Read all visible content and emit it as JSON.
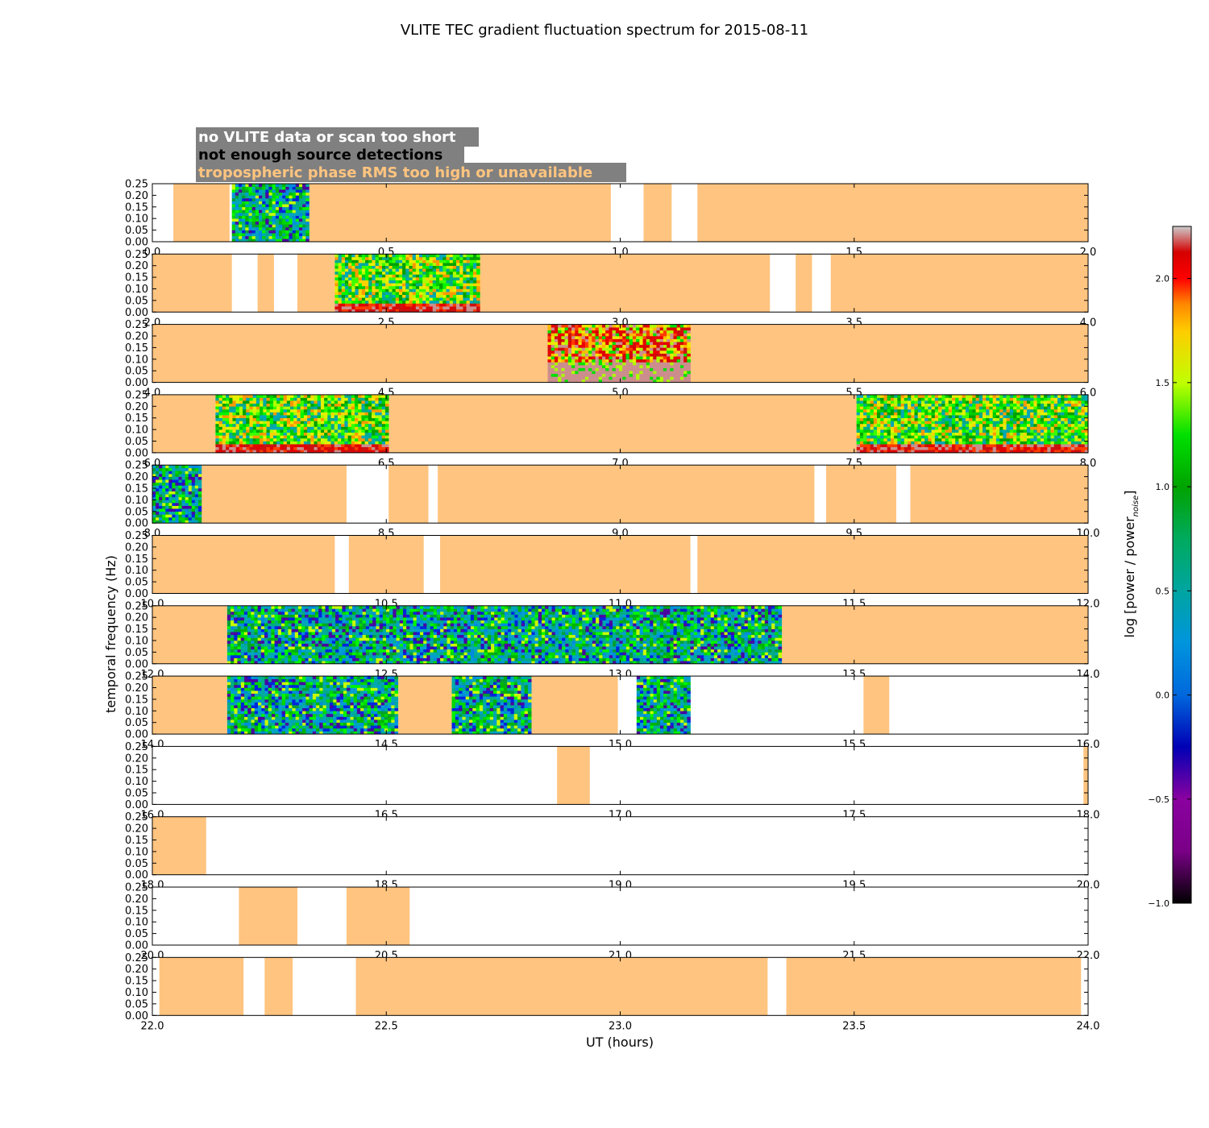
{
  "chart_data": {
    "type": "heatmap",
    "title": "VLITE TEC gradient fluctuation spectrum for 2015-08-11",
    "xlabel": "UT (hours)",
    "ylabel": "temporal frequency (Hz)",
    "colorbar_label": "log [power / power",
    "colorbar_label_sub": "noise",
    "colorbar_label_end": "]",
    "colorbar_range": [
      -1.0,
      2.25
    ],
    "colorbar_ticks": [
      "−1.0",
      "−0.5",
      "0.0",
      "0.5",
      "1.0",
      "1.5",
      "2.0"
    ],
    "colorbar_tick_values": [
      -1.0,
      -0.5,
      0.0,
      0.5,
      1.0,
      1.5,
      2.0
    ],
    "colormap": "nipy_spectral",
    "ylim": [
      0,
      0.25
    ],
    "y_ticks": [
      "0.00",
      "0.05",
      "0.10",
      "0.15",
      "0.20",
      "0.25"
    ],
    "legend": [
      {
        "label": "no VLITE data or scan too short",
        "text_color": "#ffffff",
        "box_color": "#808080"
      },
      {
        "label": "not enough source detections",
        "text_color": "#000000",
        "box_color": "#808080"
      },
      {
        "label": "tropospheric phase RMS too high or unavailable",
        "text_color": "#ffc47f",
        "box_color": "#808080"
      }
    ],
    "flag_colors": {
      "no_data": "#ffffff",
      "tropo": "#ffc47f"
    },
    "panels": [
      {
        "xlim": [
          0.0,
          2.0
        ],
        "x_ticks": [
          "0.0",
          "0.5",
          "1.0",
          "1.5",
          "2.0"
        ],
        "tropo": [
          [
            0.045,
            0.165
          ],
          [
            0.335,
            0.98
          ],
          [
            1.05,
            1.11
          ],
          [
            1.165,
            2.0
          ]
        ],
        "data": [
          {
            "range": [
              0.17,
              0.335
            ],
            "level": "low"
          }
        ]
      },
      {
        "xlim": [
          2.0,
          4.0
        ],
        "x_ticks": [
          "2.0",
          "2.5",
          "3.0",
          "3.5",
          "4.0"
        ],
        "tropo": [
          [
            2.0,
            2.17
          ],
          [
            2.225,
            2.26
          ],
          [
            2.31,
            2.39
          ],
          [
            2.7,
            3.32
          ],
          [
            3.375,
            3.41
          ],
          [
            3.45,
            4.0
          ]
        ],
        "data": [
          {
            "range": [
              2.39,
              2.7
            ],
            "level": "mid"
          }
        ]
      },
      {
        "xlim": [
          4.0,
          6.0
        ],
        "x_ticks": [
          "4.0",
          "4.5",
          "5.0",
          "5.5",
          "6.0"
        ],
        "tropo": [
          [
            4.0,
            4.845
          ],
          [
            5.15,
            6.0
          ]
        ],
        "data": [
          {
            "range": [
              4.845,
              5.15
            ],
            "level": "high"
          }
        ]
      },
      {
        "xlim": [
          6.0,
          8.0
        ],
        "x_ticks": [
          "6.0",
          "6.5",
          "7.0",
          "7.5",
          "8.0"
        ],
        "tropo": [
          [
            6.0,
            6.135
          ],
          [
            6.505,
            7.505
          ]
        ],
        "data": [
          {
            "range": [
              6.135,
              6.505
            ],
            "level": "mid"
          },
          {
            "range": [
              7.505,
              8.0
            ],
            "level": "mid"
          }
        ]
      },
      {
        "xlim": [
          8.0,
          10.0
        ],
        "x_ticks": [
          "8.0",
          "8.5",
          "9.0",
          "9.5",
          "10.0"
        ],
        "tropo": [
          [
            8.105,
            8.415
          ],
          [
            8.505,
            8.59
          ],
          [
            8.61,
            9.415
          ],
          [
            9.44,
            9.59
          ],
          [
            9.62,
            10.0
          ]
        ],
        "data": [
          {
            "range": [
              8.0,
              8.105
            ],
            "level": "low"
          }
        ]
      },
      {
        "xlim": [
          10.0,
          12.0
        ],
        "x_ticks": [
          "10.0",
          "10.5",
          "11.0",
          "11.5",
          "12.0"
        ],
        "tropo": [
          [
            10.0,
            10.39
          ],
          [
            10.42,
            10.58
          ],
          [
            10.615,
            11.15
          ],
          [
            11.165,
            12.0
          ]
        ],
        "data": []
      },
      {
        "xlim": [
          12.0,
          14.0
        ],
        "x_ticks": [
          "12.0",
          "12.5",
          "13.0",
          "13.5",
          "14.0"
        ],
        "tropo": [
          [
            12.0,
            12.16
          ],
          [
            13.345,
            14.0
          ]
        ],
        "data": [
          {
            "range": [
              12.16,
              13.345
            ],
            "level": "low"
          }
        ]
      },
      {
        "xlim": [
          14.0,
          16.0
        ],
        "x_ticks": [
          "14.0",
          "14.5",
          "15.0",
          "15.5",
          "16.0"
        ],
        "tropo": [
          [
            14.0,
            14.16
          ],
          [
            14.525,
            14.64
          ],
          [
            14.81,
            14.995
          ],
          [
            15.52,
            15.575
          ]
        ],
        "data": [
          {
            "range": [
              14.16,
              14.525
            ],
            "level": "low"
          },
          {
            "range": [
              14.64,
              14.81
            ],
            "level": "low"
          },
          {
            "range": [
              15.035,
              15.15
            ],
            "level": "low"
          }
        ]
      },
      {
        "xlim": [
          16.0,
          18.0
        ],
        "x_ticks": [
          "16.0",
          "16.5",
          "17.0",
          "17.5",
          "18.0"
        ],
        "tropo": [
          [
            16.865,
            16.935
          ],
          [
            17.99,
            18.0
          ]
        ],
        "data": []
      },
      {
        "xlim": [
          18.0,
          20.0
        ],
        "x_ticks": [
          "18.0",
          "18.5",
          "19.0",
          "19.5",
          "20.0"
        ],
        "tropo": [
          [
            18.0,
            18.115
          ]
        ],
        "data": []
      },
      {
        "xlim": [
          20.0,
          22.0
        ],
        "x_ticks": [
          "20.0",
          "20.5",
          "21.0",
          "21.5",
          "22.0"
        ],
        "tropo": [
          [
            20.185,
            20.31
          ],
          [
            20.415,
            20.55
          ]
        ],
        "data": []
      },
      {
        "xlim": [
          22.0,
          24.0
        ],
        "x_ticks": [
          "22.0",
          "22.5",
          "23.0",
          "23.5",
          "24.0"
        ],
        "tropo": [
          [
            22.015,
            22.195
          ],
          [
            22.24,
            22.3
          ],
          [
            22.435,
            23.315
          ],
          [
            23.355,
            23.985
          ]
        ],
        "data": []
      }
    ]
  }
}
